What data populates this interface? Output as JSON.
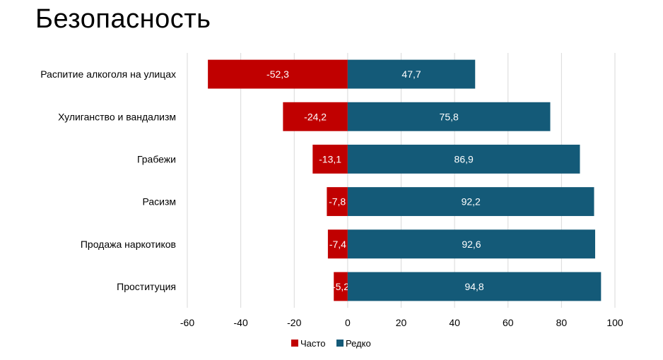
{
  "page": {
    "title": "Безопасность"
  },
  "chart_data": {
    "type": "bar",
    "orientation": "horizontal",
    "stacked": "diverging",
    "categories": [
      "Распитие алкоголя на улицах",
      "Хулиганство и вандализм",
      "Грабежи",
      "Расизм",
      "Продажа наркотиков",
      "Проституция"
    ],
    "series": [
      {
        "name": "Часто",
        "color": "#c00000",
        "values": [
          -52.3,
          -24.2,
          -13.1,
          -7.8,
          -7.4,
          -5.2
        ],
        "labels": [
          "-52,3",
          "-24,2",
          "-13,1",
          "-7,8",
          "-7,4",
          "-5,2"
        ]
      },
      {
        "name": "Редко",
        "color": "#145a78",
        "values": [
          47.7,
          75.8,
          86.9,
          92.2,
          92.6,
          94.8
        ],
        "labels": [
          "47,7",
          "75,8",
          "86,9",
          "92,2",
          "92,6",
          "94,8"
        ]
      }
    ],
    "xlim": [
      -60,
      100
    ],
    "xticks": [
      "-60",
      "-40",
      "-20",
      "0",
      "20",
      "40",
      "60",
      "80",
      "100"
    ],
    "xtick_values": [
      -60,
      -40,
      -20,
      0,
      20,
      40,
      60,
      80,
      100
    ],
    "grid": "vertical",
    "legend": "bottom"
  }
}
